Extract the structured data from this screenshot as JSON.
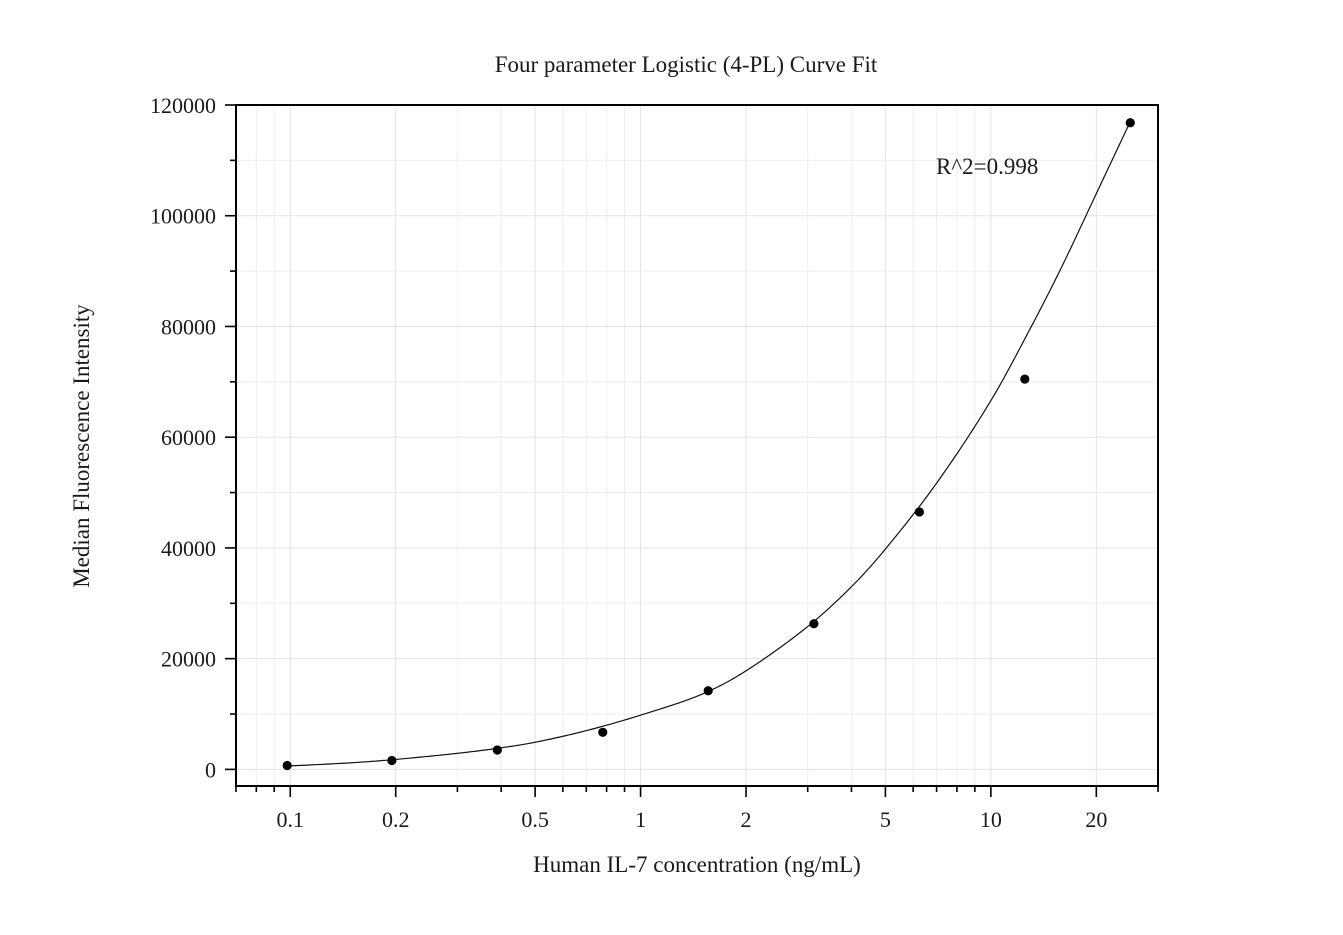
{
  "chart_data": {
    "type": "scatter",
    "title": "Four parameter Logistic (4-PL) Curve Fit",
    "xlabel": "Human IL-7 concentration (ng/mL)",
    "ylabel": "Median Fluorescence Intensity",
    "x_scale": "log",
    "xlim": [
      0.07,
      30
    ],
    "ylim": [
      -3000,
      120000
    ],
    "x_ticks": [
      0.1,
      0.2,
      0.5,
      1,
      2,
      5,
      10,
      20
    ],
    "x_tick_labels": [
      "0.1",
      "0.2",
      "0.5",
      "1",
      "2",
      "5",
      "10",
      "20"
    ],
    "y_ticks": [
      0,
      20000,
      40000,
      60000,
      80000,
      100000,
      120000
    ],
    "y_tick_labels": [
      "0",
      "20000",
      "40000",
      "60000",
      "80000",
      "100000",
      "120000"
    ],
    "grid": true,
    "annotation": "R^2=0.998",
    "points": {
      "x": [
        0.098,
        0.195,
        0.39,
        0.78,
        1.56,
        3.125,
        6.25,
        12.5,
        25
      ],
      "y": [
        700,
        1600,
        3500,
        6700,
        14200,
        26300,
        46500,
        70500,
        116800
      ]
    },
    "fit_curve": {
      "x": [
        0.098,
        0.15,
        0.2,
        0.3,
        0.4,
        0.5,
        0.7,
        1,
        1.5,
        2,
        3,
        4,
        5,
        7,
        10,
        13,
        16,
        20,
        25
      ],
      "y": [
        600,
        1200,
        1800,
        2900,
        3900,
        4900,
        7000,
        9800,
        13600,
        17800,
        25800,
        33000,
        39800,
        51700,
        66600,
        79800,
        91000,
        104000,
        117000
      ]
    }
  }
}
